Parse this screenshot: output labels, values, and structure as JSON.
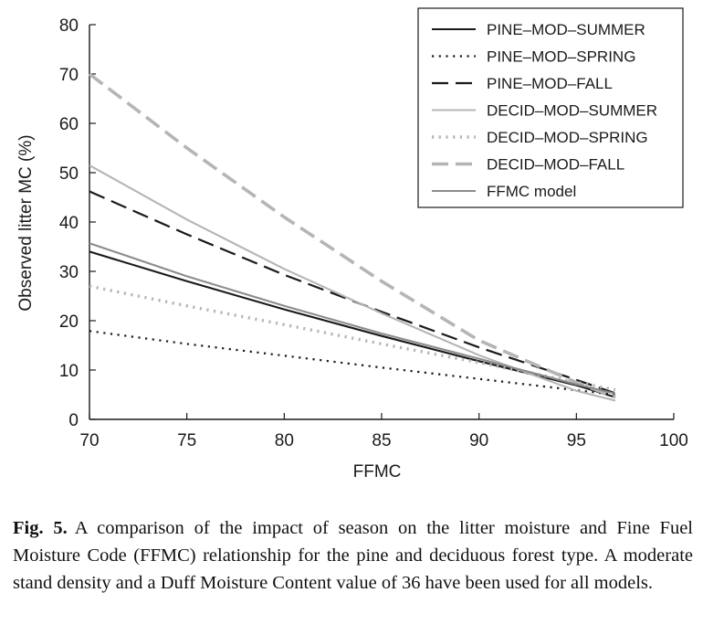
{
  "chart_data": {
    "type": "line",
    "title": "",
    "xlabel": "FFMC",
    "ylabel": "Observed litter MC (%)",
    "xlim": [
      70,
      100
    ],
    "ylim": [
      0,
      80
    ],
    "xticks": [
      70,
      75,
      80,
      85,
      90,
      95,
      100
    ],
    "yticks": [
      0,
      10,
      20,
      30,
      40,
      50,
      60,
      70,
      80
    ],
    "legend_position": "top-right",
    "series": [
      {
        "name": "PINE–MOD–SUMMER",
        "color": "#1a1a1a",
        "dash": "solid",
        "x": [
          70,
          75,
          80,
          85,
          90,
          95,
          97
        ],
        "y": [
          34.0,
          28.0,
          22.3,
          16.9,
          11.8,
          6.9,
          4.5
        ]
      },
      {
        "name": "PINE–MOD–SPRING",
        "color": "#1a1a1a",
        "dash": "dotted",
        "x": [
          70,
          75,
          80,
          85,
          90,
          95,
          97
        ],
        "y": [
          17.9,
          15.3,
          12.9,
          10.5,
          8.2,
          5.9,
          5.0
        ]
      },
      {
        "name": "PINE–MOD–FALL",
        "color": "#1a1a1a",
        "dash": "dashed",
        "x": [
          70,
          75,
          80,
          85,
          90,
          95,
          97
        ],
        "y": [
          46.2,
          37.5,
          29.3,
          21.8,
          14.6,
          8.0,
          5.3
        ]
      },
      {
        "name": "DECID–MOD–SUMMER",
        "color": "#b5b5b5",
        "dash": "solid",
        "x": [
          70,
          75,
          80,
          85,
          90,
          95,
          97
        ],
        "y": [
          51.5,
          40.5,
          30.5,
          21.5,
          13.0,
          5.8,
          3.8
        ]
      },
      {
        "name": "DECID–MOD–SPRING",
        "color": "#b5b5b5",
        "dash": "dotted",
        "x": [
          70,
          75,
          80,
          85,
          90,
          95,
          97
        ],
        "y": [
          27.0,
          23.0,
          19.2,
          15.3,
          11.5,
          7.5,
          6.0
        ]
      },
      {
        "name": "DECID–MOD–FALL",
        "color": "#b5b5b5",
        "dash": "dashed",
        "x": [
          70,
          75,
          80,
          85,
          90,
          95,
          97
        ],
        "y": [
          70.0,
          55.0,
          41.0,
          28.0,
          16.0,
          7.5,
          4.5
        ]
      },
      {
        "name": "FFMC model",
        "color": "#8c8c8c",
        "dash": "solid",
        "x": [
          70,
          75,
          80,
          85,
          90,
          95,
          97
        ],
        "y": [
          35.7,
          29.0,
          23.0,
          17.4,
          12.3,
          7.1,
          5.2
        ]
      }
    ]
  },
  "caption": {
    "label": "Fig. 5.",
    "text": "A comparison of the impact of season on the litter moisture and Fine Fuel Moisture Code (FFMC) relationship for the pine and deciduous forest type. A moderate stand density and a Duff Moisture Content value of 36 have been used for all models."
  }
}
